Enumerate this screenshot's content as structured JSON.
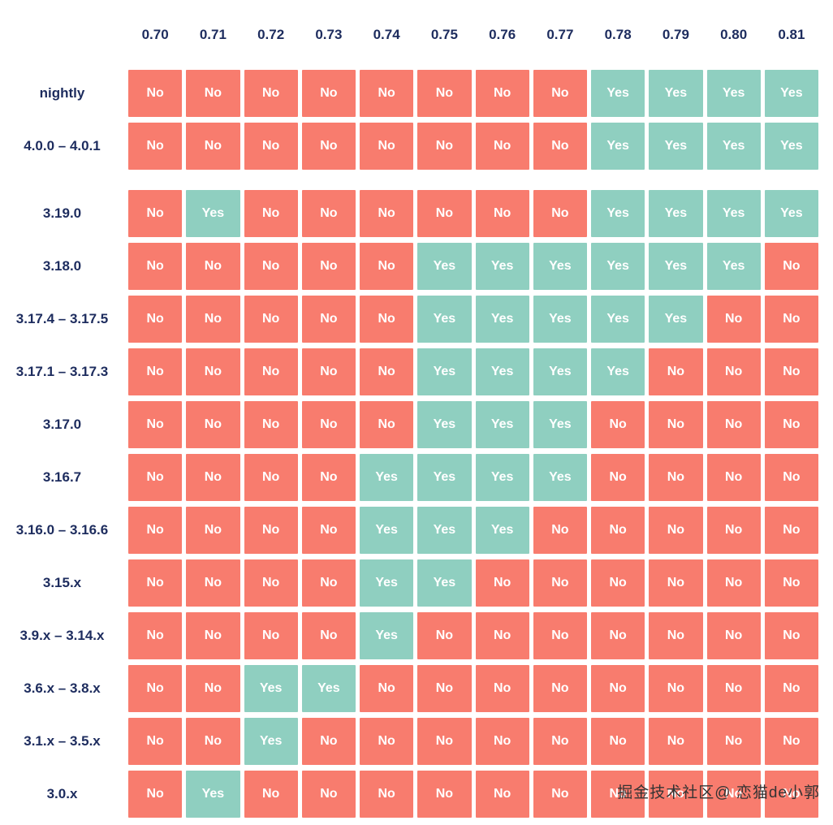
{
  "chart_data": {
    "type": "heatmap",
    "title": "",
    "x_categories": [
      "0.70",
      "0.71",
      "0.72",
      "0.73",
      "0.74",
      "0.75",
      "0.76",
      "0.77",
      "0.78",
      "0.79",
      "0.80",
      "0.81"
    ],
    "row_groups": [
      {
        "rows": [
          {
            "label": "nightly",
            "values": [
              "No",
              "No",
              "No",
              "No",
              "No",
              "No",
              "No",
              "No",
              "Yes",
              "Yes",
              "Yes",
              "Yes"
            ]
          },
          {
            "label": "4.0.0 – 4.0.1",
            "values": [
              "No",
              "No",
              "No",
              "No",
              "No",
              "No",
              "No",
              "No",
              "Yes",
              "Yes",
              "Yes",
              "Yes"
            ]
          }
        ]
      },
      {
        "rows": [
          {
            "label": "3.19.0",
            "values": [
              "No",
              "Yes",
              "No",
              "No",
              "No",
              "No",
              "No",
              "No",
              "Yes",
              "Yes",
              "Yes",
              "Yes"
            ]
          },
          {
            "label": "3.18.0",
            "values": [
              "No",
              "No",
              "No",
              "No",
              "No",
              "Yes",
              "Yes",
              "Yes",
              "Yes",
              "Yes",
              "Yes",
              "No"
            ]
          },
          {
            "label": "3.17.4 – 3.17.5",
            "values": [
              "No",
              "No",
              "No",
              "No",
              "No",
              "Yes",
              "Yes",
              "Yes",
              "Yes",
              "Yes",
              "No",
              "No"
            ]
          },
          {
            "label": "3.17.1 – 3.17.3",
            "values": [
              "No",
              "No",
              "No",
              "No",
              "No",
              "Yes",
              "Yes",
              "Yes",
              "Yes",
              "No",
              "No",
              "No"
            ]
          },
          {
            "label": "3.17.0",
            "values": [
              "No",
              "No",
              "No",
              "No",
              "No",
              "Yes",
              "Yes",
              "Yes",
              "No",
              "No",
              "No",
              "No"
            ]
          },
          {
            "label": "3.16.7",
            "values": [
              "No",
              "No",
              "No",
              "No",
              "Yes",
              "Yes",
              "Yes",
              "Yes",
              "No",
              "No",
              "No",
              "No"
            ]
          },
          {
            "label": "3.16.0 – 3.16.6",
            "values": [
              "No",
              "No",
              "No",
              "No",
              "Yes",
              "Yes",
              "Yes",
              "No",
              "No",
              "No",
              "No",
              "No"
            ]
          },
          {
            "label": "3.15.x",
            "values": [
              "No",
              "No",
              "No",
              "No",
              "Yes",
              "Yes",
              "No",
              "No",
              "No",
              "No",
              "No",
              "No"
            ]
          },
          {
            "label": "3.9.x – 3.14.x",
            "values": [
              "No",
              "No",
              "No",
              "No",
              "Yes",
              "No",
              "No",
              "No",
              "No",
              "No",
              "No",
              "No"
            ]
          },
          {
            "label": "3.6.x – 3.8.x",
            "values": [
              "No",
              "No",
              "Yes",
              "Yes",
              "No",
              "No",
              "No",
              "No",
              "No",
              "No",
              "No",
              "No"
            ]
          },
          {
            "label": "3.1.x – 3.5.x",
            "values": [
              "No",
              "No",
              "Yes",
              "No",
              "No",
              "No",
              "No",
              "No",
              "No",
              "No",
              "No",
              "No"
            ]
          },
          {
            "label": "3.0.x",
            "values": [
              "No",
              "Yes",
              "No",
              "No",
              "No",
              "No",
              "No",
              "No",
              "No",
              "No",
              "No",
              "No"
            ]
          }
        ]
      }
    ],
    "legend": {
      "Yes": "#8FCFC0",
      "No": "#F87C6E"
    },
    "colors": {
      "yes": "#8FCFC0",
      "no": "#F87C6E",
      "label": "#1D2C5E",
      "cell_text": "#FFFFFF"
    }
  },
  "watermark": {
    "text": "掘金技术社区@ 恋猫de小郭"
  }
}
